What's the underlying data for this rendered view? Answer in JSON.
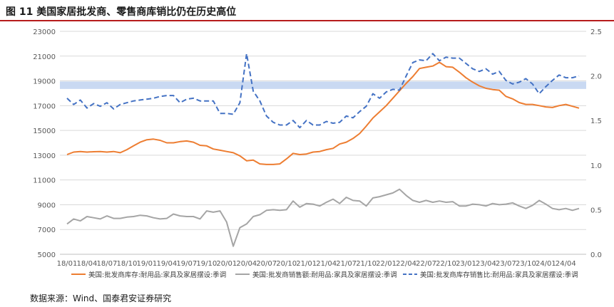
{
  "figure": {
    "title": "图 11 美国家居批发商、零售商库销比仍在历史高位",
    "source": "数据来源：Wind、国泰君安证券研究"
  },
  "chart_data": {
    "type": "line",
    "x": [
      "18/01",
      "18/02",
      "18/03",
      "18/04",
      "18/05",
      "18/06",
      "18/07",
      "18/08",
      "18/09",
      "18/10",
      "18/11",
      "18/12",
      "19/01",
      "19/02",
      "19/03",
      "19/04",
      "19/05",
      "19/06",
      "19/07",
      "19/08",
      "19/09",
      "19/10",
      "19/11",
      "19/12",
      "20/01",
      "20/02",
      "20/03",
      "20/04",
      "20/05",
      "20/06",
      "20/07",
      "20/08",
      "20/09",
      "20/10",
      "20/11",
      "20/12",
      "21/01",
      "21/02",
      "21/03",
      "21/04",
      "21/05",
      "21/06",
      "21/07",
      "21/08",
      "21/09",
      "21/10",
      "21/11",
      "21/12",
      "22/01",
      "22/02",
      "22/03",
      "22/04",
      "22/05",
      "22/06",
      "22/07",
      "22/08",
      "22/09",
      "22/10",
      "22/11",
      "22/12",
      "23/01",
      "23/02",
      "23/03",
      "23/04",
      "23/05",
      "23/06",
      "23/07",
      "23/08",
      "23/09",
      "23/10",
      "23/11",
      "23/12",
      "24/01",
      "24/02",
      "24/03",
      "24/04",
      "24/05",
      "24/06"
    ],
    "x_tick_labels": [
      "18/01",
      "18/04",
      "18/07",
      "18/10",
      "19/01",
      "19/04",
      "19/07",
      "19/10",
      "20/01",
      "20/04",
      "20/07",
      "20/10",
      "21/01",
      "21/04",
      "21/07",
      "21/10",
      "22/01",
      "22/04",
      "22/07",
      "22/10",
      "23/01",
      "23/04",
      "23/07",
      "23/10",
      "24/01",
      "24/04"
    ],
    "ylim_left": [
      5000,
      23000
    ],
    "yticks_left": [
      5000,
      7000,
      9000,
      11000,
      13000,
      15000,
      17000,
      19000,
      21000,
      23000
    ],
    "ylim_right": [
      0.0,
      2.5
    ],
    "yticks_right": [
      "0.0",
      "0.5",
      "1.0",
      "1.5",
      "2.0",
      "2.5"
    ],
    "highlight_band_left": [
      18350,
      18950
    ],
    "legend_position": "bottom",
    "series": [
      {
        "name": "美国:批发商库存:耐用品:家具及家居摆设:季调",
        "axis": "left",
        "style": "solid",
        "color": "#ED7D31",
        "values": [
          13050,
          13250,
          13300,
          13250,
          13280,
          13290,
          13250,
          13300,
          13200,
          13450,
          13750,
          14050,
          14250,
          14300,
          14200,
          14000,
          14000,
          14100,
          14150,
          14050,
          13800,
          13750,
          13500,
          13400,
          13300,
          13200,
          12950,
          12550,
          12600,
          12300,
          12250,
          12250,
          12300,
          12700,
          13150,
          13050,
          13100,
          13250,
          13300,
          13450,
          13550,
          13900,
          14050,
          14350,
          14750,
          15350,
          16000,
          16500,
          17000,
          17600,
          18200,
          18800,
          19350,
          20000,
          20100,
          20200,
          20500,
          20150,
          20100,
          19700,
          19250,
          18900,
          18600,
          18400,
          18300,
          18250,
          17750,
          17550,
          17250,
          17100,
          17100,
          17000,
          16900,
          16850,
          17000,
          17100,
          16950,
          16800
        ]
      },
      {
        "name": "美国:批发商销售额:耐用品:家具及家居摆设:季调",
        "axis": "left",
        "style": "solid",
        "color": "#A5A5A5",
        "values": [
          7450,
          7850,
          7700,
          8050,
          7950,
          7850,
          8100,
          7900,
          7900,
          8000,
          8050,
          8150,
          8100,
          7950,
          7850,
          7900,
          8250,
          8100,
          8050,
          8050,
          7850,
          8500,
          8400,
          8500,
          7600,
          5650,
          7150,
          7450,
          8050,
          8200,
          8550,
          8600,
          8550,
          8600,
          9300,
          8800,
          9100,
          9050,
          8900,
          9200,
          9450,
          9100,
          9600,
          9350,
          9300,
          8900,
          9550,
          9650,
          9800,
          9950,
          10250,
          9750,
          9350,
          9200,
          9350,
          9200,
          9300,
          9200,
          9250,
          8900,
          8900,
          9050,
          9000,
          8900,
          9100,
          9000,
          9050,
          9150,
          8900,
          8700,
          8950,
          9350,
          9050,
          8700,
          8600,
          8700,
          8550,
          8700
        ]
      },
      {
        "name": "美国:批发商库存销售比:耐用品:家具及家居摆设:季调",
        "axis": "right",
        "style": "dashed",
        "color": "#4472C4",
        "values": [
          1.75,
          1.68,
          1.73,
          1.64,
          1.69,
          1.66,
          1.7,
          1.63,
          1.68,
          1.7,
          1.72,
          1.73,
          1.74,
          1.75,
          1.77,
          1.78,
          1.78,
          1.7,
          1.74,
          1.75,
          1.72,
          1.72,
          1.72,
          1.58,
          1.58,
          1.57,
          1.7,
          2.25,
          1.83,
          1.72,
          1.55,
          1.48,
          1.45,
          1.45,
          1.5,
          1.42,
          1.5,
          1.45,
          1.45,
          1.49,
          1.47,
          1.48,
          1.55,
          1.53,
          1.6,
          1.66,
          1.8,
          1.75,
          1.82,
          1.85,
          1.84,
          2.0,
          2.15,
          2.18,
          2.17,
          2.25,
          2.17,
          2.21,
          2.2,
          2.2,
          2.14,
          2.08,
          2.05,
          2.08,
          2.02,
          2.05,
          1.95,
          1.91,
          1.93,
          1.97,
          1.91,
          1.8,
          1.88,
          1.95,
          2.01,
          1.98,
          1.98,
          2.0
        ]
      }
    ]
  }
}
